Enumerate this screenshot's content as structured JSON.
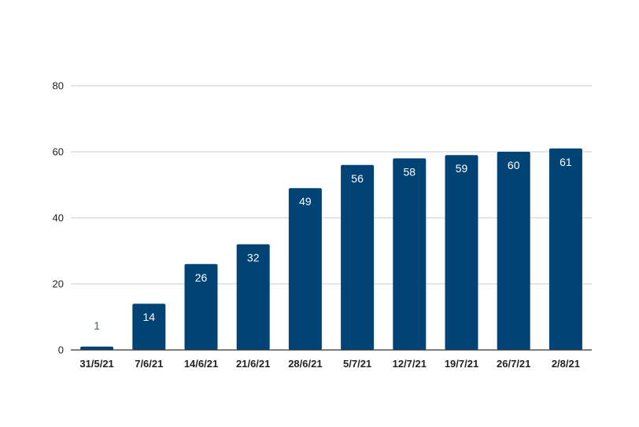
{
  "chart_data": {
    "type": "bar",
    "title": "",
    "xlabel": "",
    "ylabel": "",
    "categories": [
      "31/5/21",
      "7/6/21",
      "14/6/21",
      "21/6/21",
      "28/6/21",
      "5/7/21",
      "12/7/21",
      "19/7/21",
      "26/7/21",
      "2/8/21"
    ],
    "values": [
      1,
      14,
      26,
      32,
      49,
      56,
      58,
      59,
      60,
      61
    ],
    "data_labels": [
      "1",
      "14",
      "26",
      "32",
      "49",
      "56",
      "58",
      "59",
      "60",
      "61"
    ],
    "ylim": [
      0,
      80
    ],
    "yticks": [
      0,
      20,
      40,
      60,
      80
    ],
    "ytick_labels": [
      "0",
      "20",
      "40",
      "60",
      "80"
    ],
    "grid": true,
    "legend": "none",
    "bar_color": "#024375",
    "label_color_inside": "#ffffff",
    "label_color_outside": "#42648a"
  }
}
